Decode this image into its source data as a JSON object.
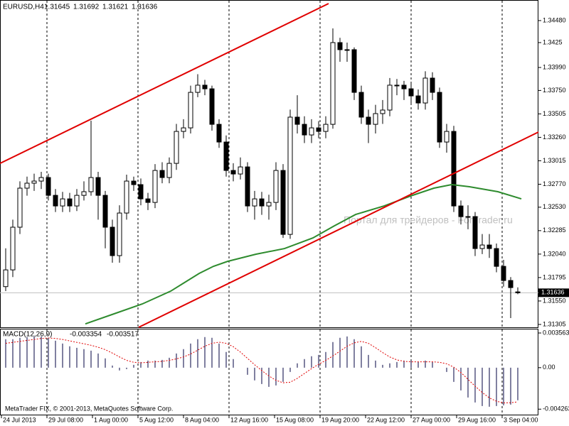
{
  "chart_data": {
    "type": "candlestick",
    "symbol": "EURUSD,H4",
    "open": [
      1.317,
      1.31875,
      1.32321,
      1.32729,
      1.32781,
      1.32803,
      1.3284,
      1.32654,
      1.32543,
      1.32617,
      1.32543,
      1.32654,
      1.32692,
      1.3284,
      1.32654,
      1.32321,
      1.32024,
      1.32469,
      1.32803,
      1.32766,
      1.32617,
      1.3258,
      1.32914,
      1.3284,
      1.32988,
      1.33322,
      1.33359,
      1.3373,
      1.33805,
      1.33767,
      1.33396,
      1.33211,
      1.32914,
      1.32877,
      1.32951,
      1.32543,
      1.32617,
      1.32543,
      1.3258,
      1.32914,
      1.32246,
      1.33471,
      1.33396,
      1.33285,
      1.33359,
      1.33322,
      1.33396,
      1.3425,
      1.34176,
      1.34176,
      1.3373,
      1.33471,
      1.33396,
      1.33508,
      1.33545,
      1.33805,
      1.33805,
      1.33767,
      1.33693,
      1.33619,
      1.33879,
      1.3373,
      1.33211,
      1.33322,
      1.32543,
      1.32432,
      1.32432,
      1.32098,
      1.32135,
      1.32098,
      1.31912,
      1.31764,
      1.31645
    ],
    "high": [
      1.321,
      1.324,
      1.328,
      1.3285,
      1.3288,
      1.329,
      1.3288,
      1.3272,
      1.3269,
      1.3268,
      1.3272,
      1.328,
      1.33434,
      1.329,
      1.327,
      1.324,
      1.3255,
      1.3287,
      1.3285,
      1.3283,
      1.3268,
      1.3298,
      1.33,
      1.3305,
      1.334,
      1.3345,
      1.338,
      1.3392,
      1.3386,
      1.338,
      1.3345,
      1.3328,
      1.3299,
      1.3305,
      1.33,
      1.327,
      1.3269,
      1.3266,
      1.33,
      1.3298,
      1.3355,
      1.337,
      1.3348,
      1.3345,
      1.3343,
      1.3348,
      1.34398,
      1.343,
      1.3425,
      1.342,
      1.338,
      1.3355,
      1.336,
      1.3365,
      1.3388,
      1.3387,
      1.3385,
      1.3382,
      1.3376,
      1.3395,
      1.3394,
      1.3378,
      1.334,
      1.3338,
      1.326,
      1.3255,
      1.3248,
      1.3225,
      1.3225,
      1.3215,
      1.3198,
      1.318,
      1.31692
    ],
    "low": [
      1.31653,
      1.318,
      1.3225,
      1.3265,
      1.327,
      1.3272,
      1.326,
      1.3248,
      1.3248,
      1.3248,
      1.3249,
      1.326,
      1.3265,
      1.324,
      1.321,
      1.3195,
      1.3195,
      1.324,
      1.327,
      1.3255,
      1.325,
      1.3252,
      1.3278,
      1.3278,
      1.3292,
      1.3325,
      1.333,
      1.3368,
      1.337,
      1.3333,
      1.3315,
      1.3285,
      1.328,
      1.3282,
      1.3248,
      1.324,
      1.3245,
      1.324,
      1.325,
      1.32209,
      1.322,
      1.333,
      1.332,
      1.332,
      1.3325,
      1.3325,
      1.3335,
      1.3405,
      1.3405,
      1.3365,
      1.334,
      1.332,
      1.333,
      1.334,
      1.3348,
      1.337,
      1.3365,
      1.336,
      1.3355,
      1.3355,
      1.3365,
      1.3315,
      1.331,
      1.3248,
      1.3235,
      1.323,
      1.3202,
      1.3204,
      1.32,
      1.3185,
      1.317,
      1.31371,
      1.31621
    ],
    "close": [
      1.31875,
      1.32321,
      1.32729,
      1.32781,
      1.32803,
      1.3284,
      1.32654,
      1.32543,
      1.32617,
      1.32543,
      1.32654,
      1.32692,
      1.3284,
      1.32654,
      1.32321,
      1.32024,
      1.32469,
      1.32803,
      1.32766,
      1.32617,
      1.3258,
      1.32914,
      1.3284,
      1.32988,
      1.33322,
      1.33359,
      1.3373,
      1.33805,
      1.33767,
      1.33396,
      1.33211,
      1.32914,
      1.32877,
      1.32951,
      1.32543,
      1.32617,
      1.32543,
      1.3258,
      1.32914,
      1.32246,
      1.33471,
      1.33396,
      1.33285,
      1.33359,
      1.33322,
      1.33396,
      1.3425,
      1.34176,
      1.34176,
      1.3373,
      1.33471,
      1.33396,
      1.33508,
      1.33545,
      1.33805,
      1.33805,
      1.33767,
      1.33693,
      1.33619,
      1.33879,
      1.3373,
      1.33211,
      1.33322,
      1.32543,
      1.32432,
      1.32432,
      1.32098,
      1.32135,
      1.32098,
      1.31912,
      1.31764,
      1.3169,
      1.31636
    ],
    "xlim": [
      -0.8,
      74.9
    ],
    "xticks": [
      {
        "value": -0.6,
        "label": "24 Jul 2013"
      },
      {
        "value": 5.8,
        "label": "29 Jul 08:00"
      },
      {
        "value": 12.2,
        "label": "1 Aug 00:00"
      },
      {
        "value": 18.6,
        "label": "5 Aug 12:00"
      },
      {
        "value": 25,
        "label": "8 Aug 04:00"
      },
      {
        "value": 31.4,
        "label": "12 Aug 16:00"
      },
      {
        "value": 37.8,
        "label": "15 Aug 08:00"
      },
      {
        "value": 44.2,
        "label": "19 Aug 20:00"
      },
      {
        "value": 50.6,
        "label": "22 Aug 12:00"
      },
      {
        "value": 57,
        "label": "27 Aug 00:00"
      },
      {
        "value": 63.4,
        "label": "29 Aug 16:00"
      },
      {
        "value": 69.8,
        "label": "3 Sep 04:00"
      }
    ],
    "ylim": [
      1.31275,
      1.34695
    ],
    "yticks": [
      {
        "value": 1.3448,
        "label": "1.34480"
      },
      1.3425,
      {
        "value": 1.3399,
        "label": "1.33990"
      },
      {
        "value": 1.3375,
        "label": "1.33750"
      },
      1.33505,
      {
        "value": 1.3326,
        "label": "1.33260"
      },
      1.33015,
      {
        "value": 1.3277,
        "label": "1.32770"
      },
      {
        "value": 1.3253,
        "label": "1.32530"
      },
      1.32285,
      {
        "value": 1.3204,
        "label": "1.32040"
      },
      1.31795,
      {
        "value": 1.3155,
        "label": "1.31550"
      },
      1.31305
    ],
    "ma": {
      "color": "#2e8b2e",
      "x": [
        11.2,
        15.2,
        19.2,
        23.2,
        27.2,
        29.2,
        31.2,
        35.2,
        39.2,
        43.2,
        46.2,
        49.2,
        53.2,
        57.2,
        60.2,
        62.7,
        65.2,
        69.2,
        72.5
      ],
      "values": [
        1.31311,
        1.31415,
        1.31519,
        1.31653,
        1.31838,
        1.31912,
        1.31964,
        1.32039,
        1.32098,
        1.32209,
        1.32335,
        1.32454,
        1.32543,
        1.32654,
        1.32729,
        1.32766,
        1.32744,
        1.32692,
        1.32617
      ]
    },
    "trendlines": [
      {
        "color": "#e00000",
        "x": [
          -0.8,
          45.4
        ],
        "y": [
          1.32988,
          1.34658
        ]
      },
      {
        "color": "#e00000",
        "x": [
          18.7,
          74.9
        ],
        "y": [
          1.31275,
          1.33315
        ]
      }
    ],
    "watermark": "Портал для трейдеров - ForTrader.ru",
    "copyright": "MetaTrader FIX, © 2001-2013, MetaQuotes Software Corp.",
    "macd": {
      "name": "MACD(12,26,9)",
      "color": "#000040",
      "signal_color": "#e00000",
      "histogram": [
        0.00292,
        0.00292,
        0.00307,
        0.00314,
        0.00321,
        0.00321,
        0.00307,
        0.00277,
        0.00248,
        0.00219,
        0.00204,
        0.0019,
        0.00175,
        0.00146,
        0.00095,
        0.00022,
        -0.00029,
        -0.00015,
        0.00029,
        0.00058,
        0.00073,
        0.00073,
        0.0008,
        0.00102,
        0.00146,
        0.0019,
        0.00248,
        0.00292,
        0.00314,
        0.00307,
        0.00248,
        0.00161,
        0.00088,
        0,
        -0.00073,
        -0.00131,
        -0.00168,
        -0.00197,
        -0.00183,
        -0.00146,
        -0.00044,
        0.00044,
        0.00088,
        0.00117,
        0.00131,
        0.00161,
        0.00263,
        0.00307,
        0.00321,
        0.00292,
        0.00219,
        0.00131,
        0.00073,
        0.00029,
        0.00044,
        0.00058,
        0.00073,
        0.00073,
        0.00058,
        0.00073,
        0.00058,
        0,
        -0.00044,
        -0.00146,
        -0.00234,
        -0.00307,
        -0.00358,
        -0.00394,
        -0.00402,
        -0.00394,
        -0.00387,
        -0.0038,
        -0.003354
      ],
      "signal": [
        0.0025,
        0.0026,
        0.0027,
        0.0028,
        0.0029,
        0.003,
        0.00305,
        0.003,
        0.0029,
        0.00275,
        0.0026,
        0.00245,
        0.0023,
        0.0021,
        0.00185,
        0.0015,
        0.0011,
        0.00075,
        0.00055,
        0.0005,
        0.00055,
        0.0006,
        0.00065,
        0.00075,
        0.0009,
        0.0011,
        0.0014,
        0.0018,
        0.0022,
        0.0025,
        0.00262,
        0.0025,
        0.00215,
        0.0016,
        0.00095,
        0.0003,
        -0.0003,
        -0.00085,
        -0.0013,
        -0.00155,
        -0.0015,
        -0.0011,
        -0.0006,
        -0.0001,
        0.00035,
        0.00075,
        0.0012,
        0.0017,
        0.0022,
        0.00255,
        0.0027,
        0.0025,
        0.00205,
        0.00155,
        0.0011,
        0.0008,
        0.00065,
        0.0006,
        0.0006,
        0.0006,
        0.0006,
        0.00055,
        0.0004,
        5e-05,
        -0.0005,
        -0.0012,
        -0.0019,
        -0.00255,
        -0.0031,
        -0.00345,
        -0.00362,
        -0.0036,
        -0.003517
      ],
      "ylim": [
        -0.0049,
        0.004
      ],
      "yticks": [
        0.003563,
        {
          "value": 0,
          "label": "0.00"
        },
        -0.004263
      ]
    }
  }
}
